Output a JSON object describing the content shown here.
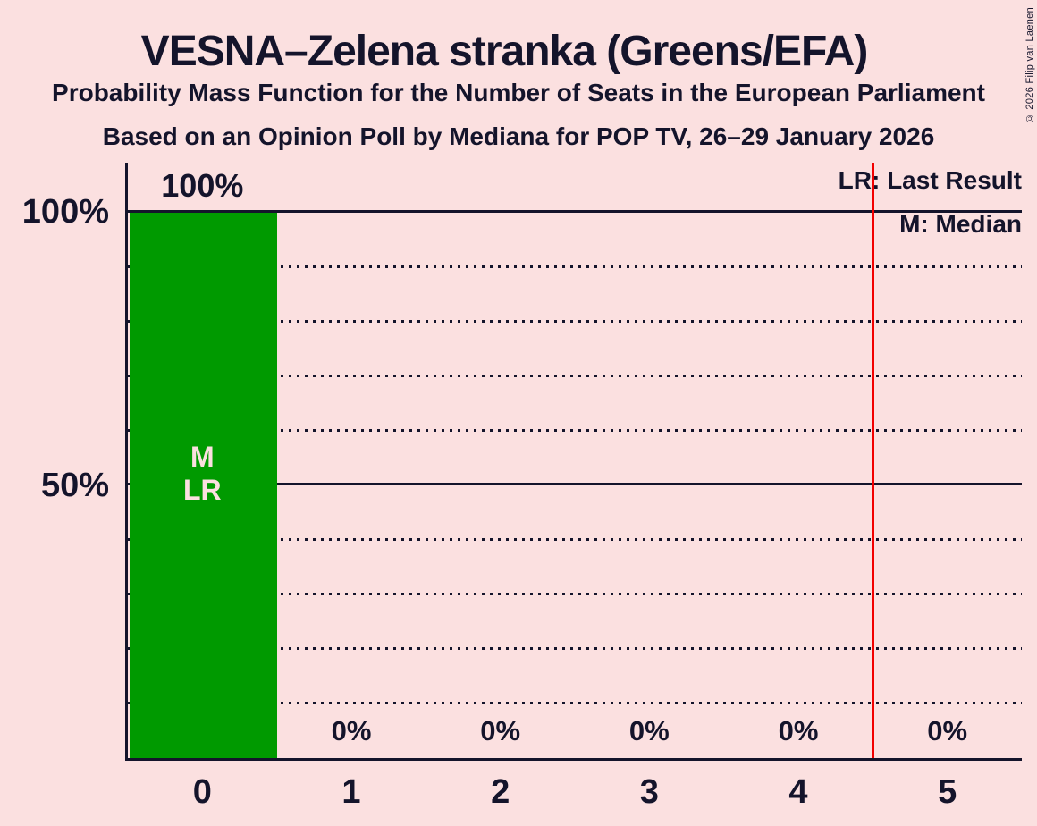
{
  "chart_data": {
    "type": "bar",
    "title": "VESNA–Zelena stranka (Greens/EFA)",
    "subtitle": "Probability Mass Function for the Number of Seats in the European Parliament",
    "source_line": "Based on an Opinion Poll by Mediana for POP TV, 26–29 January 2026",
    "copyright": "© 2026 Filip van Laenen",
    "categories": [
      "0",
      "1",
      "2",
      "3",
      "4",
      "5"
    ],
    "values": [
      100,
      0,
      0,
      0,
      0,
      0
    ],
    "value_labels": [
      "100%",
      "0%",
      "0%",
      "0%",
      "0%",
      "0%"
    ],
    "xlabel": "",
    "ylabel": "",
    "ylim": [
      0,
      109
    ],
    "grid": "horizontal only",
    "y_ticks": [
      {
        "value": 100,
        "label": "100%"
      },
      {
        "value": 50,
        "label": "50%"
      }
    ],
    "solid_gridlines": [
      100,
      50
    ],
    "dotted_gridlines": [
      90,
      80,
      70,
      60,
      40,
      30,
      20,
      10
    ],
    "bar_annotation": {
      "category": "0",
      "lines": [
        "M",
        "LR"
      ]
    },
    "red_line_at": 4.5,
    "legend": [
      {
        "label": "LR: Last Result"
      },
      {
        "label": "M: Median"
      }
    ],
    "colors": {
      "background": "#fbe0e0",
      "ink": "#14142b",
      "bar": "#009a00",
      "red_line": "#f20000",
      "annotation_text": "#fbe0e0"
    }
  }
}
